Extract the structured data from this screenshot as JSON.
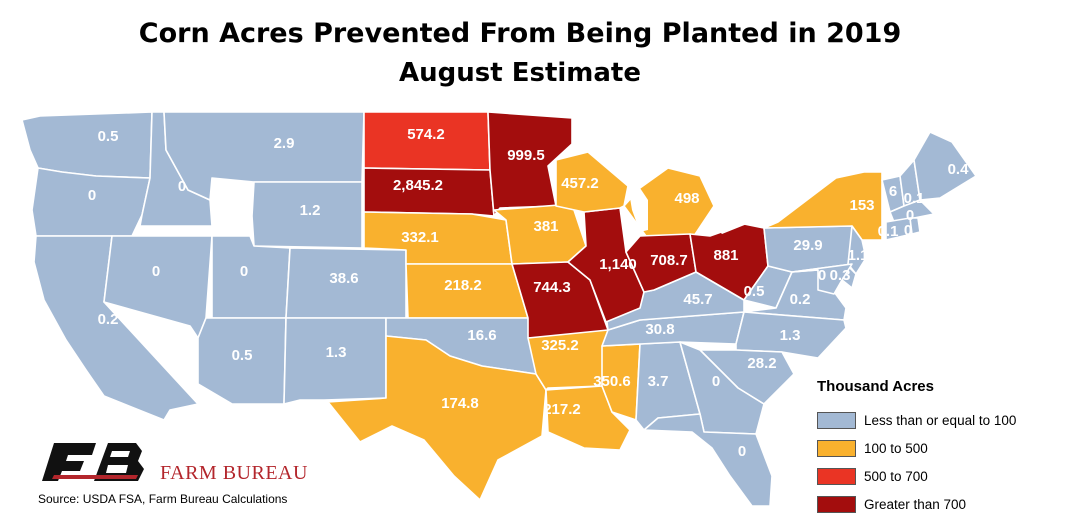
{
  "title_line1": "Corn Acres Prevented From Being Planted in 2019",
  "title_line2": "August Estimate",
  "colors": {
    "low": "#a3b9d4",
    "mid": "#f9b12e",
    "high": "#ea3424",
    "top": "#a30d0d"
  },
  "legend": {
    "title": "Thousand Acres",
    "items": [
      {
        "label": "Less than or equal to 100",
        "color": "#a3b9d4"
      },
      {
        "label": "100 to 500",
        "color": "#f9b12e"
      },
      {
        "label": "500 to 700",
        "color": "#ea3424"
      },
      {
        "label": "Greater than 700",
        "color": "#a30d0d"
      }
    ]
  },
  "brand": "FARM BUREAU",
  "source": "Source: USDA FSA, Farm Bureau Calculations",
  "states": {
    "WA": "0.5",
    "OR": "0",
    "CA": "0.2",
    "ID": "0",
    "NV": "0",
    "MT": "2.9",
    "WY": "1.2",
    "UT": "0",
    "AZ": "0.5",
    "CO": "38.6",
    "NM": "1.3",
    "ND": "574.2",
    "SD": "2,845.2",
    "NE": "332.1",
    "KS": "218.2",
    "OK": "16.6",
    "TX": "174.8",
    "MN": "999.5",
    "IA": "381",
    "MO": "744.3",
    "AR": "325.2",
    "LA": "217.2",
    "WI": "457.2",
    "IL": "1,140",
    "MS": "350.6",
    "MI": "498",
    "IN": "708.7",
    "OH": "881",
    "KY": "45.7",
    "TN": "30.8",
    "AL": "3.7",
    "GA": "0",
    "FL": "0",
    "SC": "28.2",
    "NC": "1.3",
    "VA": "0.2",
    "WV": "0.5",
    "PA": "29.9",
    "NY": "153",
    "ME": "0.4",
    "VT": "6",
    "NH": "0.1",
    "MA": "0",
    "CT": "0.1",
    "RI": "0",
    "NJ": "1.1",
    "DE": "0.3",
    "MD": "0"
  }
}
